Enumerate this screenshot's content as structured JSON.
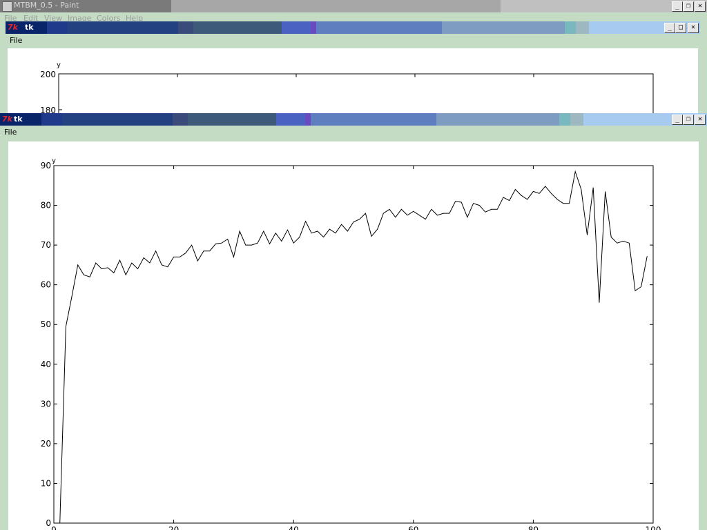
{
  "paint_window": {
    "title": "MTBM_0.5 - Paint",
    "menu": [
      "File",
      "Edit",
      "View",
      "Image",
      "Colors",
      "Help"
    ]
  },
  "tk_window_back": {
    "title": "tk",
    "menu_file": "File",
    "ylabel": "y",
    "yticks": [
      "200",
      "180"
    ]
  },
  "tk_window_front": {
    "title": "tk",
    "menu_file": "File"
  },
  "window_buttons": {
    "minimize": "_",
    "maximize": "□",
    "restore": "❐",
    "close": "✕"
  },
  "chart_data": {
    "type": "line",
    "title": "",
    "xlabel": "",
    "ylabel": "y",
    "xlim": [
      0,
      100
    ],
    "ylim": [
      0,
      90
    ],
    "xticks": [
      0,
      20,
      40,
      60,
      80,
      100
    ],
    "yticks": [
      0,
      10,
      20,
      30,
      40,
      50,
      60,
      70,
      80,
      90
    ],
    "color": "#000000",
    "x": [
      1,
      2,
      3,
      4,
      5,
      6,
      7,
      8,
      9,
      10,
      11,
      12,
      13,
      14,
      15,
      16,
      17,
      18,
      19,
      20,
      21,
      22,
      23,
      24,
      25,
      26,
      27,
      28,
      29,
      30,
      31,
      32,
      33,
      34,
      35,
      36,
      37,
      38,
      39,
      40,
      41,
      42,
      43,
      44,
      45,
      46,
      47,
      48,
      49,
      50,
      51,
      52,
      53,
      54,
      55,
      56,
      57,
      58,
      59,
      60,
      61,
      62,
      63,
      64,
      65,
      66,
      67,
      68,
      69,
      70,
      71,
      72,
      73,
      74,
      75,
      76,
      77,
      78,
      79,
      80,
      81,
      82,
      83,
      84,
      85,
      86,
      87,
      88,
      89,
      90,
      91,
      92,
      93,
      94,
      95,
      96,
      97,
      98,
      99
    ],
    "y": [
      0,
      49.5,
      57,
      65,
      62.5,
      62,
      65.5,
      64,
      64.3,
      63,
      66.2,
      62.5,
      65.5,
      64,
      66.8,
      65.5,
      68.5,
      65,
      64.5,
      67,
      67,
      68,
      70,
      66,
      68.5,
      68.5,
      70.3,
      70.5,
      71.5,
      67,
      73.5,
      70,
      70,
      70.5,
      73.5,
      70.3,
      73,
      71,
      73.8,
      70.5,
      72,
      76,
      73,
      73.5,
      72,
      74,
      73,
      75.2,
      73.5,
      75.8,
      76.5,
      78,
      72.2,
      74,
      78,
      79,
      77,
      79,
      77.5,
      78.5,
      77.5,
      76.5,
      79,
      77.5,
      78,
      78,
      81,
      80.8,
      77,
      80.5,
      80,
      78.3,
      79,
      79,
      82,
      81.2,
      84,
      82.5,
      81.5,
      83.5,
      83,
      84.8,
      83,
      81.5,
      80.5,
      80.5,
      88.5,
      84,
      72.5,
      84.5,
      55.5,
      83.5,
      72,
      70.5,
      71,
      70.5,
      58.5,
      59.5,
      67.2
    ]
  }
}
